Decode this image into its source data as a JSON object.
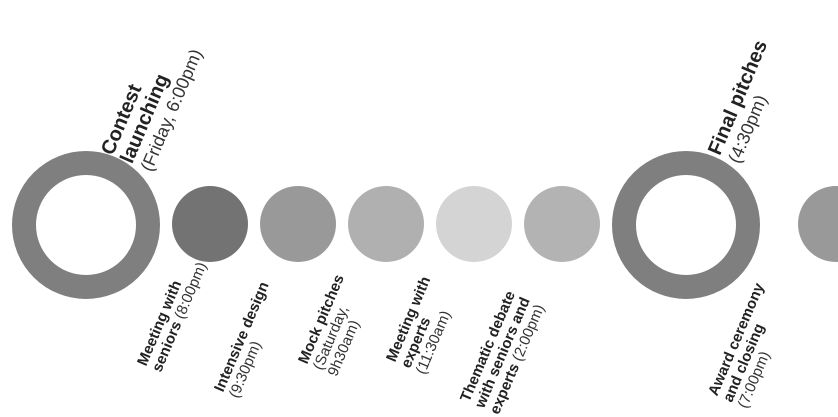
{
  "colors": {
    "ring": "#7f7f7f",
    "dot1": "#737373",
    "dot2": "#999999",
    "dot3": "#b0b0b0",
    "dot4": "#d4d4d4",
    "dot5": "#b3b3b3",
    "dot6": "#999999"
  },
  "events": [
    {
      "l1": "Contest",
      "l2": "launching",
      "l3": "(Friday, 6:00pm)"
    },
    {
      "l1": "Meeting with",
      "l2b": "seniors",
      "l2r": " (8:00pm)"
    },
    {
      "l1": "Intensive design",
      "l2": "(9:30pm)"
    },
    {
      "l1": "Mock pitches",
      "l2": "(Saturday,",
      "l3": "9h30am)"
    },
    {
      "l1": "Meeting with",
      "l2": "experts",
      "l3": "(11:30am)"
    },
    {
      "l1": "Thematic debate",
      "l2": "with seniors and",
      "l3b": "experts",
      "l3r": " (2:00pm)"
    },
    {
      "l1": "Final pitches",
      "l2": "(4:30pm)"
    },
    {
      "l1": "Award ceremony",
      "l2": "and closing",
      "l3": "(7:00pm)"
    }
  ]
}
